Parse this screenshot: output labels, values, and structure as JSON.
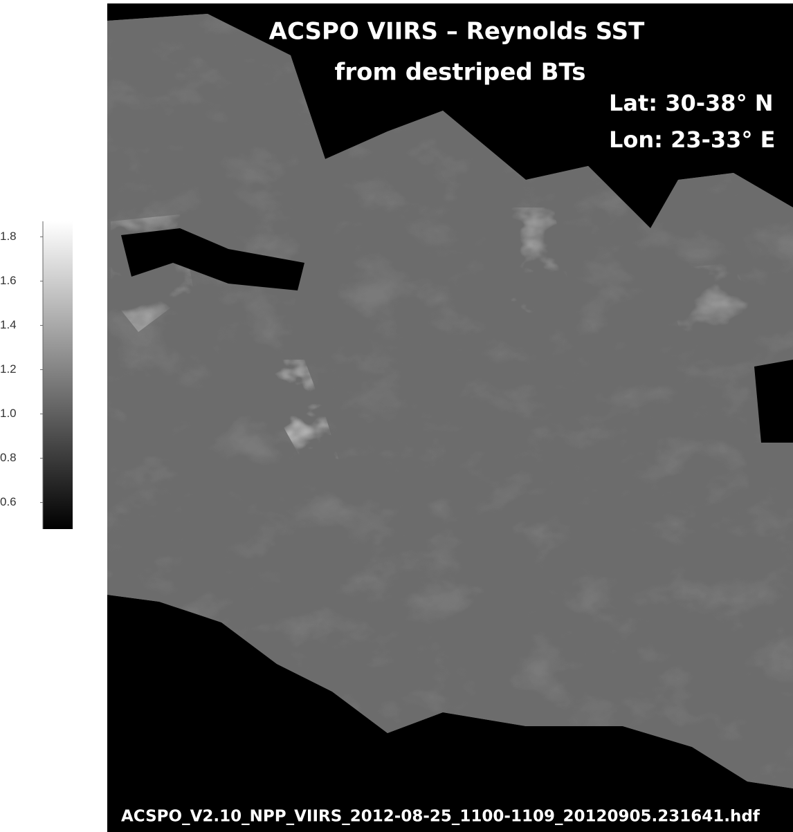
{
  "image": {
    "title": [
      "ACSPO VIIRS – Reynolds SST",
      "from destriped BTs"
    ],
    "lat": "Lat:  30-38° N",
    "lon": "Lon: 23-33° E",
    "filename": "ACSPO_V2.10_NPP_VIIRS_2012-08-25_1100-1109_20120905.231641.hdf"
  },
  "colorbar": {
    "range": [
      0.48,
      1.87
    ],
    "ticks": [
      0.6,
      0.8,
      {
        "value": 1,
        "label": "1.0"
      },
      1.2,
      1.4,
      1.6,
      1.8
    ]
  }
}
